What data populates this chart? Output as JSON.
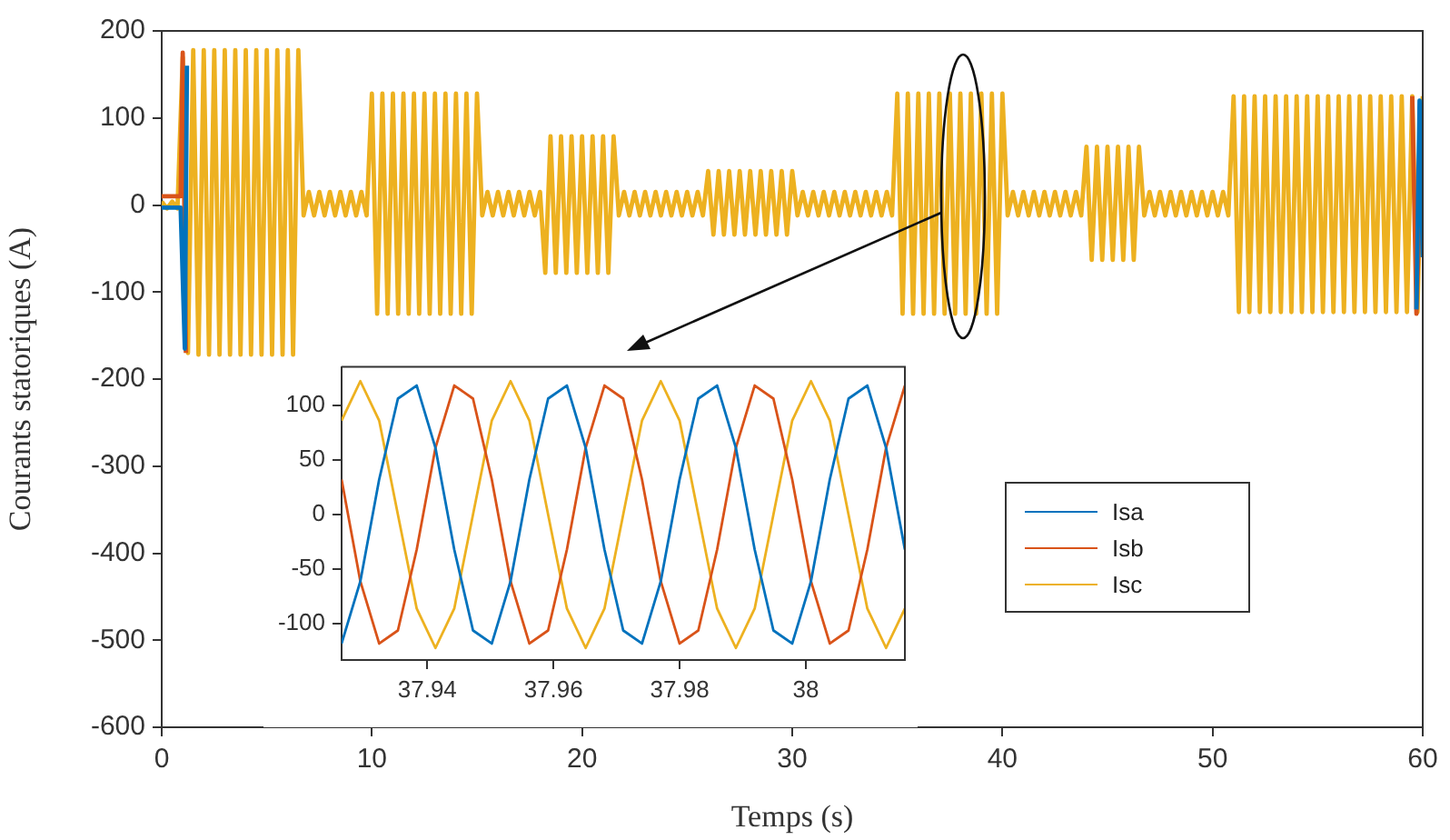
{
  "chart_data": [
    {
      "type": "line",
      "xlabel": "Temps (s)",
      "ylabel": "Courants statoriques (A)",
      "xlim": [
        0,
        60
      ],
      "xticks": [
        0,
        10,
        20,
        30,
        40,
        50,
        60
      ],
      "ylim": [
        -600,
        200
      ],
      "yticks": [
        -600,
        -500,
        -400,
        -300,
        -200,
        -100,
        0,
        100,
        200
      ],
      "legend": "bottom right",
      "series": [
        {
          "name": "Isa",
          "color": "#0072bd",
          "x": [
            0,
            0.5,
            0.9,
            1.1,
            1.2,
            30,
            59.7,
            59.85,
            60
          ],
          "values": [
            -3,
            -3,
            -3,
            -165,
            160,
            null,
            -120,
            120,
            -60
          ]
        },
        {
          "name": "Isb",
          "color": "#d95319",
          "x": [
            0,
            0.5,
            0.9,
            1.0,
            1.15,
            30,
            59.5,
            59.7,
            60
          ],
          "values": [
            10,
            10,
            10,
            175,
            -170,
            null,
            125,
            -125,
            110
          ]
        },
        {
          "name": "Isc",
          "color": "#edb120",
          "x": [
            0,
            0.25,
            0.5,
            0.75,
            1,
            1.25,
            1.5,
            1.75,
            2,
            2.25,
            2.5,
            2.75,
            3,
            3.25,
            3.5,
            3.75,
            4,
            4.25,
            4.5,
            4.75,
            5,
            5.25,
            5.5,
            5.75,
            6,
            6.25,
            6.5,
            6.75,
            7,
            7.25,
            7.5,
            7.75,
            8,
            8.25,
            8.5,
            8.75,
            9,
            9.25,
            9.5,
            9.75,
            10,
            10.25,
            10.5,
            10.75,
            11,
            11.25,
            11.5,
            11.75,
            12,
            12.25,
            12.5,
            12.75,
            13,
            13.25,
            13.5,
            13.75,
            14,
            14.25,
            14.5,
            14.75,
            15,
            15.25,
            15.5,
            15.75,
            16,
            16.25,
            16.5,
            16.75,
            17,
            17.25,
            17.5,
            17.75,
            18,
            18.25,
            18.5,
            18.75,
            19,
            19.25,
            19.5,
            19.75,
            20,
            20.25,
            20.5,
            20.75,
            21,
            21.25,
            21.5,
            21.75,
            22,
            22.25,
            22.5,
            22.75,
            23,
            23.25,
            23.5,
            23.75,
            24,
            24.25,
            24.5,
            24.75,
            25,
            25.25,
            25.5,
            25.75,
            26,
            26.25,
            26.5,
            26.75,
            27,
            27.25,
            27.5,
            27.75,
            28,
            28.25,
            28.5,
            28.75,
            29,
            29.25,
            29.5,
            29.75,
            30,
            30.25,
            30.5,
            30.75,
            31,
            31.25,
            31.5,
            31.75,
            32,
            32.25,
            32.5,
            32.75,
            33,
            33.25,
            33.5,
            33.75,
            34,
            34.25,
            34.5,
            34.75,
            35,
            35.25,
            35.5,
            35.75,
            36,
            36.25,
            36.5,
            36.75,
            37,
            37.25,
            37.5,
            37.75,
            38,
            38.25,
            38.5,
            38.75,
            39,
            39.25,
            39.5,
            39.75,
            40,
            40.25,
            40.5,
            40.75,
            41,
            41.25,
            41.5,
            41.75,
            42,
            42.25,
            42.5,
            42.75,
            43,
            43.25,
            43.5,
            43.75,
            44,
            44.25,
            44.5,
            44.75,
            45,
            45.25,
            45.5,
            45.75,
            46,
            46.25,
            46.5,
            46.75,
            47,
            47.25,
            47.5,
            47.75,
            48,
            48.25,
            48.5,
            48.75,
            49,
            49.25,
            49.5,
            49.75,
            50,
            50.25,
            50.5,
            50.75,
            51,
            51.25,
            51.5,
            51.75,
            52,
            52.25,
            52.5,
            52.75,
            53,
            53.25,
            53.5,
            53.75,
            54,
            54.25,
            54.5,
            54.75,
            55,
            55.25,
            55.5,
            55.75,
            56,
            56.25,
            56.5,
            56.75,
            57,
            57.25,
            57.5,
            57.75,
            58,
            58.25,
            58.5,
            58.75,
            59,
            59.25,
            59.5,
            59.75,
            60
          ],
          "values": [
            4,
            -4,
            4,
            -4,
            170,
            -170,
            178,
            -172,
            178,
            -172,
            178,
            -172,
            178,
            -172,
            178,
            -172,
            178,
            -172,
            178,
            -172,
            178,
            -172,
            178,
            -172,
            178,
            -172,
            178,
            -12,
            15,
            -12,
            15,
            -12,
            15,
            -12,
            15,
            -12,
            15,
            -12,
            15,
            -12,
            128,
            -125,
            128,
            -125,
            128,
            -125,
            128,
            -125,
            128,
            -125,
            128,
            -125,
            128,
            -125,
            128,
            -125,
            128,
            -125,
            128,
            -125,
            128,
            -12,
            15,
            -12,
            15,
            -12,
            15,
            -12,
            15,
            -12,
            15,
            -12,
            15,
            -78,
            79,
            -78,
            79,
            -78,
            79,
            -78,
            79,
            -78,
            79,
            -78,
            79,
            -78,
            79,
            -12,
            15,
            -12,
            15,
            -12,
            15,
            -12,
            15,
            -12,
            15,
            -12,
            15,
            -12,
            15,
            -12,
            15,
            -12,
            39,
            -34,
            39,
            -34,
            39,
            -34,
            39,
            -34,
            39,
            -34,
            39,
            -34,
            39,
            -34,
            39,
            -34,
            39,
            -12,
            15,
            -12,
            15,
            -12,
            15,
            -12,
            15,
            -12,
            15,
            -12,
            15,
            -12,
            15,
            -12,
            15,
            -12,
            15,
            -12,
            128,
            -125,
            128,
            -125,
            128,
            -125,
            128,
            -125,
            128,
            -125,
            128,
            -125,
            128,
            -125,
            128,
            -125,
            128,
            -125,
            128,
            -125,
            128,
            -12,
            15,
            -12,
            15,
            -12,
            15,
            -12,
            15,
            -12,
            15,
            -12,
            15,
            -12,
            15,
            -12,
            67,
            -63,
            67,
            -63,
            67,
            -63,
            67,
            -63,
            67,
            -63,
            67,
            -12,
            15,
            -12,
            15,
            -12,
            15,
            -12,
            15,
            -12,
            15,
            -12,
            15,
            -12,
            15,
            -12,
            15,
            -12,
            125,
            -123,
            125,
            -123,
            125,
            -123,
            125,
            -123,
            125,
            -123,
            125,
            -123,
            125,
            -123,
            125,
            -123,
            125,
            -123,
            125,
            -123,
            125,
            -123,
            125,
            -123,
            125,
            -123,
            125,
            -123,
            125,
            -123,
            125,
            -123,
            125,
            -123,
            125,
            -123,
            125
          ]
        }
      ]
    },
    {
      "type": "line",
      "x": [
        37.92643,
        37.9294,
        37.93238,
        37.93535,
        37.93833,
        37.9413,
        37.94428,
        37.94725,
        37.95023,
        37.9532,
        37.95618,
        37.95915,
        37.96213,
        37.9651,
        37.96808,
        37.97105,
        37.97403,
        37.977,
        37.97998,
        37.98295,
        37.98593,
        37.9889,
        37.99188,
        37.99485,
        37.99783,
        38.0008,
        38.00378,
        38.00675,
        38.00973,
        38.0127,
        38.01568
      ],
      "xlim": [
        37.92643,
        38.01568
      ],
      "xticks": [
        37.94,
        37.96,
        37.98,
        38
      ],
      "ylim": [
        -133,
        135
      ],
      "yticks": [
        -100,
        -50,
        0,
        50,
        100
      ],
      "series": [
        {
          "color": "#0072bd",
          "values": [
            -118,
            -61,
            32,
            106,
            118,
            61,
            -32,
            -106,
            -118,
            -61,
            32,
            106,
            118,
            61,
            -32,
            -106,
            -118,
            -61,
            32,
            106,
            118,
            61,
            -32,
            -106,
            -118,
            -61,
            32,
            106,
            118,
            61,
            -32
          ]
        },
        {
          "color": "#d95319",
          "values": [
            32,
            -61,
            -118,
            -106,
            -32,
            61,
            118,
            106,
            32,
            -61,
            -118,
            -106,
            -32,
            61,
            118,
            106,
            32,
            -61,
            -118,
            -106,
            -32,
            61,
            118,
            106,
            32,
            -61,
            -118,
            -106,
            -32,
            61,
            118
          ]
        },
        {
          "color": "#edb120",
          "values": [
            86,
            122,
            86,
            0,
            -86,
            -122,
            -86,
            0,
            86,
            122,
            86,
            0,
            -86,
            -122,
            -86,
            0,
            86,
            122,
            86,
            0,
            -86,
            -122,
            -86,
            0,
            86,
            122,
            86,
            0,
            -86,
            -122,
            -86
          ]
        }
      ]
    }
  ]
}
